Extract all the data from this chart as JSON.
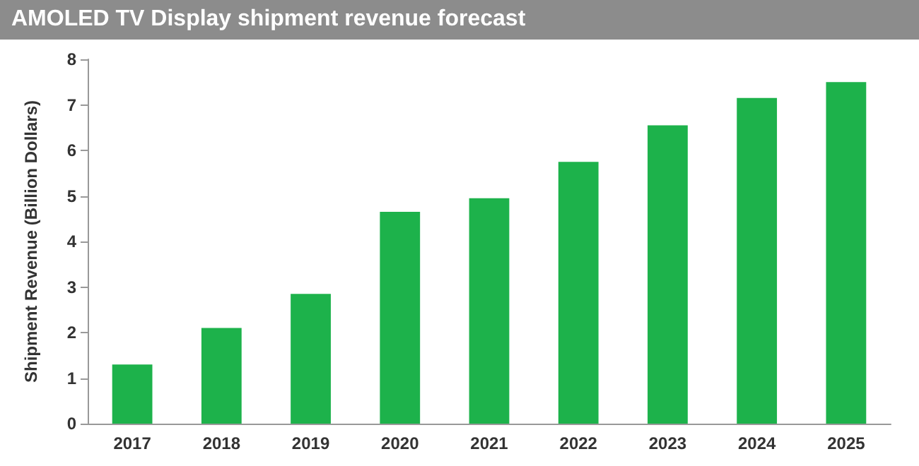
{
  "chart_data": {
    "type": "bar",
    "title": "AMOLED TV Display shipment revenue forecast",
    "ylabel": "Shipment Revenue (Billion Dollars)",
    "categories": [
      "2017",
      "2018",
      "2019",
      "2020",
      "2021",
      "2022",
      "2023",
      "2024",
      "2025"
    ],
    "values": [
      1.3,
      2.1,
      2.85,
      4.65,
      4.95,
      5.75,
      6.55,
      7.15,
      7.5
    ],
    "color": "#1db24b",
    "ylim": [
      0,
      8
    ],
    "yticks": [
      0,
      1,
      2,
      3,
      4,
      5,
      6,
      7,
      8
    ],
    "grid": false
  }
}
